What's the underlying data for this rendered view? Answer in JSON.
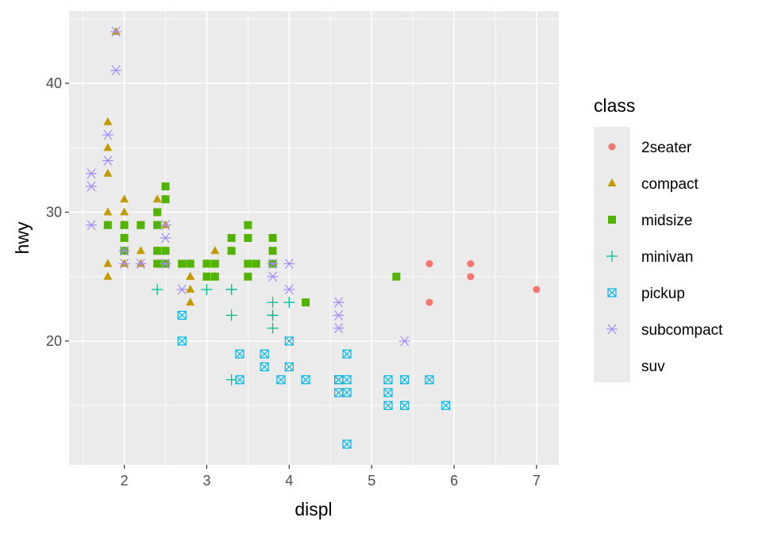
{
  "chart_data": {
    "type": "scatter",
    "xlabel": "displ",
    "ylabel": "hwy",
    "xlim": [
      1.33,
      7.27
    ],
    "ylim": [
      10.4,
      45.6
    ],
    "x_ticks": [
      2,
      3,
      4,
      5,
      6,
      7
    ],
    "y_ticks": [
      20,
      30,
      40
    ],
    "grid": true,
    "background": "#ebebeb",
    "legend": {
      "title": "class",
      "position": "right",
      "entries": [
        {
          "label": "2seater",
          "shape": "circle",
          "color": "#f8766d"
        },
        {
          "label": "compact",
          "shape": "triangle",
          "color": "#c49a00"
        },
        {
          "label": "midsize",
          "shape": "square",
          "color": "#53b400"
        },
        {
          "label": "minivan",
          "shape": "plus",
          "color": "#00c094"
        },
        {
          "label": "pickup",
          "shape": "square-cross",
          "color": "#00b6eb"
        },
        {
          "label": "subcompact",
          "shape": "asterisk",
          "color": "#a58aff"
        },
        {
          "label": "suv",
          "shape": "none",
          "color": "#fb61d7"
        }
      ]
    },
    "series": [
      {
        "name": "2seater",
        "points": [
          [
            5.7,
            26
          ],
          [
            5.7,
            23
          ],
          [
            6.2,
            26
          ],
          [
            6.2,
            25
          ],
          [
            7.0,
            24
          ]
        ]
      },
      {
        "name": "compact",
        "points": [
          [
            1.8,
            29
          ],
          [
            1.8,
            29
          ],
          [
            2.0,
            31
          ],
          [
            2.0,
            30
          ],
          [
            2.8,
            26
          ],
          [
            2.8,
            26
          ],
          [
            3.1,
            27
          ],
          [
            1.8,
            26
          ],
          [
            1.8,
            25
          ],
          [
            2.0,
            28
          ],
          [
            2.0,
            27
          ],
          [
            2.8,
            25
          ],
          [
            2.8,
            25
          ],
          [
            3.1,
            25
          ],
          [
            3.1,
            25
          ],
          [
            2.2,
            26
          ],
          [
            2.2,
            29
          ],
          [
            2.4,
            27
          ],
          [
            2.4,
            31
          ],
          [
            3.0,
            26
          ],
          [
            3.3,
            27
          ],
          [
            1.8,
            37
          ],
          [
            1.8,
            35
          ],
          [
            1.8,
            33
          ],
          [
            1.8,
            30
          ],
          [
            1.9,
            44
          ],
          [
            2.0,
            29
          ],
          [
            2.0,
            26
          ],
          [
            2.0,
            29
          ],
          [
            2.0,
            29
          ],
          [
            2.5,
            29
          ],
          [
            2.5,
            27
          ],
          [
            2.8,
            24
          ],
          [
            2.8,
            23
          ],
          [
            2.5,
            31
          ],
          [
            2.5,
            26
          ],
          [
            2.4,
            27
          ],
          [
            2.2,
            27
          ],
          [
            2.0,
            26
          ]
        ]
      },
      {
        "name": "midsize",
        "points": [
          [
            2.4,
            29
          ],
          [
            2.4,
            30
          ],
          [
            2.5,
            32
          ],
          [
            2.5,
            31
          ],
          [
            3.5,
            29
          ],
          [
            3.5,
            28
          ],
          [
            3.8,
            28
          ],
          [
            3.8,
            26
          ],
          [
            3.0,
            26
          ],
          [
            3.0,
            25
          ],
          [
            3.1,
            26
          ],
          [
            3.1,
            25
          ],
          [
            2.7,
            26
          ],
          [
            2.7,
            26
          ],
          [
            3.3,
            28
          ],
          [
            3.3,
            27
          ],
          [
            3.5,
            26
          ],
          [
            3.5,
            26
          ],
          [
            3.8,
            27
          ],
          [
            3.8,
            26
          ],
          [
            3.5,
            25
          ],
          [
            3.6,
            26
          ],
          [
            4.2,
            23
          ],
          [
            5.3,
            25
          ],
          [
            2.4,
            27
          ],
          [
            2.5,
            27
          ],
          [
            3.0,
            26
          ],
          [
            3.5,
            26
          ],
          [
            2.0,
            29
          ],
          [
            2.0,
            28
          ],
          [
            2.8,
            26
          ],
          [
            1.8,
            29
          ],
          [
            2.4,
            26
          ],
          [
            2.5,
            26
          ],
          [
            2.2,
            29
          ],
          [
            2.0,
            27
          ],
          [
            3.0,
            25
          ]
        ]
      },
      {
        "name": "minivan",
        "points": [
          [
            2.4,
            24
          ],
          [
            3.0,
            24
          ],
          [
            3.3,
            22
          ],
          [
            3.3,
            24
          ],
          [
            3.3,
            24
          ],
          [
            3.3,
            17
          ],
          [
            3.8,
            22
          ],
          [
            3.8,
            21
          ],
          [
            3.8,
            23
          ],
          [
            4.0,
            23
          ],
          [
            3.8,
            22
          ]
        ]
      },
      {
        "name": "pickup",
        "points": [
          [
            2.7,
            20
          ],
          [
            2.7,
            22
          ],
          [
            3.4,
            17
          ],
          [
            3.4,
            19
          ],
          [
            3.7,
            18
          ],
          [
            3.7,
            19
          ],
          [
            3.9,
            17
          ],
          [
            4.0,
            20
          ],
          [
            4.0,
            18
          ],
          [
            4.2,
            17
          ],
          [
            4.6,
            17
          ],
          [
            4.6,
            16
          ],
          [
            4.7,
            19
          ],
          [
            4.7,
            12
          ],
          [
            4.7,
            17
          ],
          [
            4.7,
            16
          ],
          [
            5.2,
            17
          ],
          [
            5.2,
            15
          ],
          [
            5.2,
            16
          ],
          [
            5.4,
            15
          ],
          [
            5.4,
            17
          ],
          [
            5.7,
            17
          ],
          [
            5.9,
            15
          ],
          [
            4.6,
            17
          ]
        ]
      },
      {
        "name": "subcompact",
        "points": [
          [
            1.6,
            33
          ],
          [
            1.6,
            32
          ],
          [
            1.6,
            29
          ],
          [
            1.8,
            36
          ],
          [
            1.8,
            34
          ],
          [
            1.9,
            41
          ],
          [
            1.9,
            44
          ],
          [
            2.0,
            26
          ],
          [
            2.0,
            27
          ],
          [
            2.2,
            26
          ],
          [
            2.5,
            29
          ],
          [
            2.5,
            28
          ],
          [
            2.7,
            24
          ],
          [
            3.8,
            26
          ],
          [
            3.8,
            25
          ],
          [
            4.0,
            26
          ],
          [
            4.0,
            24
          ],
          [
            4.6,
            23
          ],
          [
            4.6,
            22
          ],
          [
            4.6,
            21
          ],
          [
            5.4,
            20
          ],
          [
            2.5,
            26
          ]
        ]
      }
    ]
  }
}
